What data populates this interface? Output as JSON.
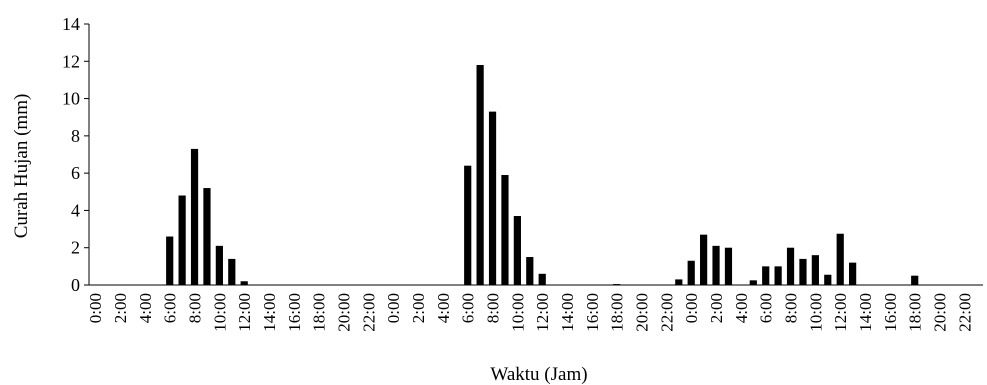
{
  "chart_data": {
    "type": "bar",
    "title": "",
    "xlabel": "Waktu (Jam)",
    "ylabel": "Curah Hujan (mm)",
    "ylim": [
      0,
      14
    ],
    "yticks": [
      0,
      2,
      4,
      6,
      8,
      10,
      12,
      14
    ],
    "grid": false,
    "legend": "none",
    "bar_color": "#000000",
    "categories": [
      "0:00",
      "1:00",
      "2:00",
      "3:00",
      "4:00",
      "5:00",
      "6:00",
      "7:00",
      "8:00",
      "9:00",
      "10:00",
      "11:00",
      "12:00",
      "13:00",
      "14:00",
      "15:00",
      "16:00",
      "17:00",
      "18:00",
      "19:00",
      "20:00",
      "21:00",
      "22:00",
      "23:00",
      "0:00",
      "1:00",
      "2:00",
      "3:00",
      "4:00",
      "5:00",
      "6:00",
      "7:00",
      "8:00",
      "9:00",
      "10:00",
      "11:00",
      "12:00",
      "13:00",
      "14:00",
      "15:00",
      "16:00",
      "17:00",
      "18:00",
      "19:00",
      "20:00",
      "21:00",
      "22:00",
      "23:00",
      "0:00",
      "1:00",
      "2:00",
      "3:00",
      "4:00",
      "5:00",
      "6:00",
      "7:00",
      "8:00",
      "9:00",
      "10:00",
      "11:00",
      "12:00",
      "13:00",
      "14:00",
      "15:00",
      "16:00",
      "17:00",
      "18:00",
      "19:00",
      "20:00",
      "21:00",
      "22:00",
      "23:00"
    ],
    "tick_labels": [
      "0:00",
      "2:00",
      "4:00",
      "6:00",
      "8:00",
      "10:00",
      "12:00",
      "14:00",
      "16:00",
      "18:00",
      "20:00",
      "22:00",
      "0:00",
      "2:00",
      "4:00",
      "6:00",
      "8:00",
      "10:00",
      "12:00",
      "14:00",
      "16:00",
      "18:00",
      "20:00",
      "22:00",
      "0:00",
      "2:00",
      "4:00",
      "6:00",
      "8:00",
      "10:00",
      "12:00",
      "14:00",
      "16:00",
      "18:00",
      "20:00",
      "22:00"
    ],
    "values": [
      0,
      0,
      0,
      0,
      0,
      0,
      2.6,
      4.8,
      7.3,
      5.2,
      2.1,
      1.4,
      0.2,
      0,
      0,
      0,
      0,
      0,
      0,
      0,
      0,
      0,
      0,
      0,
      0,
      0,
      0,
      0,
      0,
      0,
      6.4,
      11.8,
      9.3,
      5.9,
      3.7,
      1.5,
      0.6,
      0,
      0,
      0,
      0,
      0,
      0.05,
      0,
      0,
      0,
      0,
      0.3,
      1.3,
      2.7,
      2.1,
      2.0,
      0,
      0.25,
      1.0,
      1.0,
      2.0,
      1.4,
      1.6,
      0.55,
      2.75,
      1.2,
      0,
      0,
      0,
      0,
      0.5,
      0,
      0,
      0,
      0,
      0
    ]
  }
}
